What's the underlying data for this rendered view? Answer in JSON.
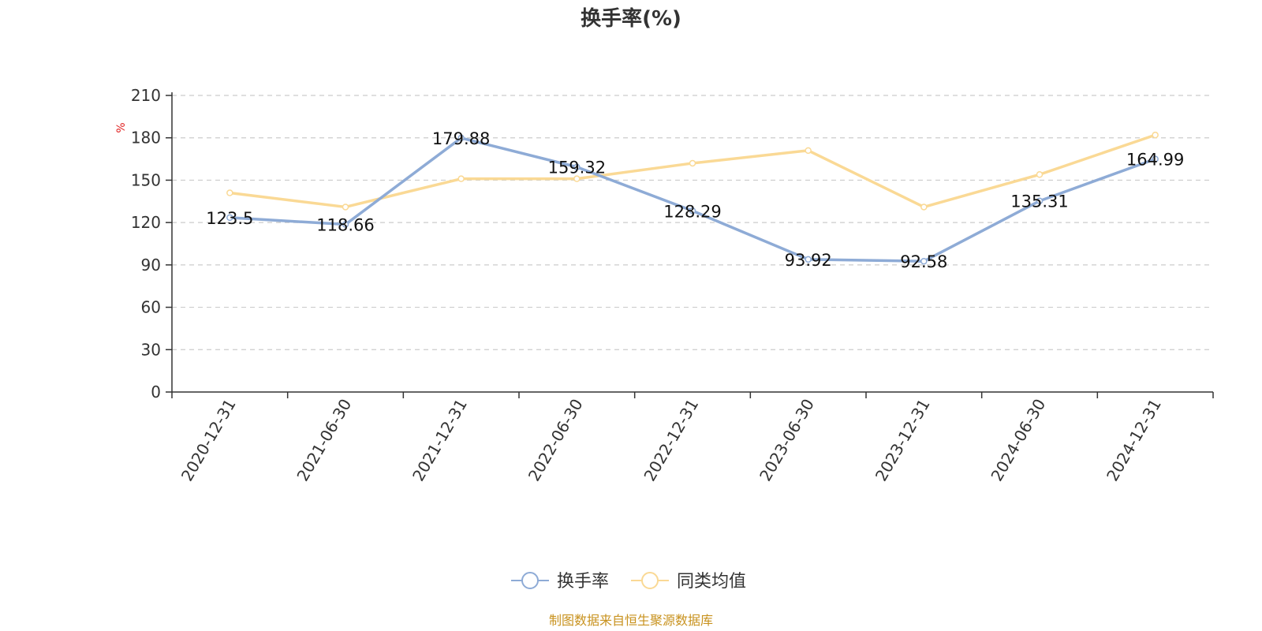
{
  "chart_data": {
    "type": "line",
    "title": "换手率(%)",
    "ylabel": "%",
    "xlabel": "",
    "ylim": [
      0,
      210
    ],
    "yticks": [
      0,
      30,
      60,
      90,
      120,
      150,
      180,
      210
    ],
    "grid": true,
    "legend_position": "bottom-center",
    "categories": [
      "2020-12-31",
      "2021-06-30",
      "2021-12-31",
      "2022-06-30",
      "2022-12-31",
      "2023-06-30",
      "2023-12-31",
      "2024-06-30",
      "2024-12-31"
    ],
    "series": [
      {
        "name": "换手率",
        "color": "#8eabd6",
        "values": [
          123.5,
          118.66,
          179.88,
          159.32,
          128.29,
          93.92,
          92.58,
          135.31,
          164.99
        ],
        "labels": [
          "123.5",
          "118.66",
          "179.88",
          "159.32",
          "128.29",
          "93.92",
          "92.58",
          "135.31",
          "164.99"
        ]
      },
      {
        "name": "同类均值",
        "color": "#fad995",
        "values": [
          141,
          131,
          151,
          151,
          162,
          171,
          131,
          154,
          182
        ]
      }
    ],
    "source": "制图数据来自恒生聚源数据库"
  }
}
